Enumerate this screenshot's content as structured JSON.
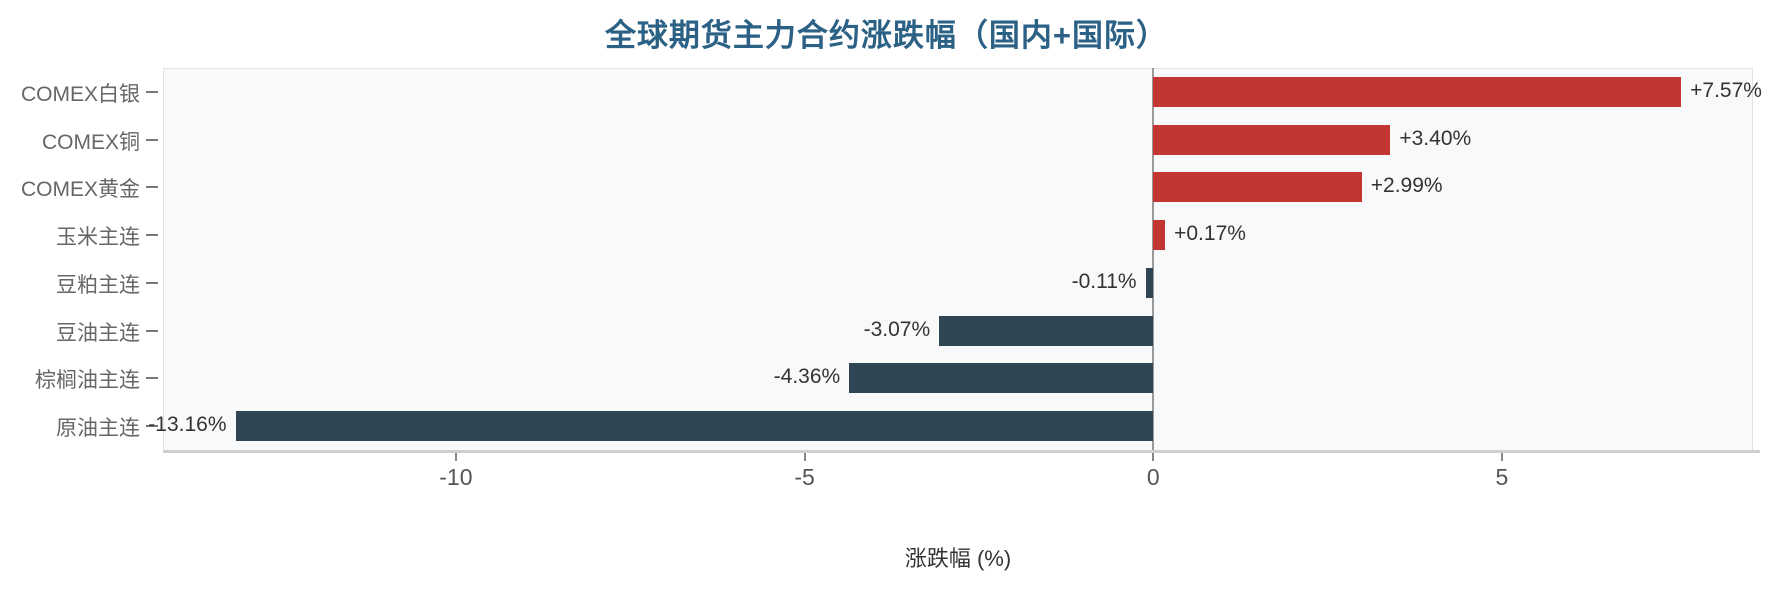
{
  "chart_data": {
    "type": "bar",
    "orientation": "horizontal",
    "title": "全球期货主力合约涨跌幅（国内+国际）",
    "xlabel": "涨跌幅 (%)",
    "xlim": [
      -14.2,
      8.6
    ],
    "xticks": [
      {
        "value": -10,
        "label": "-10"
      },
      {
        "value": -5,
        "label": "-5"
      },
      {
        "value": 0,
        "label": "0"
      },
      {
        "value": 5,
        "label": "5"
      }
    ],
    "grid": false,
    "legend": null,
    "categories": [
      "COMEX白银",
      "COMEX铜",
      "COMEX黄金",
      "玉米主连",
      "豆粕主连",
      "豆油主连",
      "棕榈油主连",
      "原油主连"
    ],
    "series": [
      {
        "name": "涨跌幅",
        "values": [
          7.57,
          3.4,
          2.99,
          0.17,
          -0.11,
          -3.07,
          -4.36,
          -13.16
        ],
        "labels": [
          "+7.57%",
          "+3.40%",
          "+2.99%",
          "+0.17%",
          "-0.11%",
          "-3.07%",
          "-4.36%",
          "-13.16%"
        ]
      }
    ],
    "colors": {
      "positive_bar": "#c23531",
      "negative_bar": "#2f4554",
      "title": "#2b6185",
      "plot_bg": "#f8f9fb",
      "axis_line": "#cfcfcf",
      "zero_line": "#9a9a9a",
      "tick_mark": "#888888",
      "tick_label": "#555555",
      "category_label": "#666666",
      "value_label": "#333333"
    }
  }
}
